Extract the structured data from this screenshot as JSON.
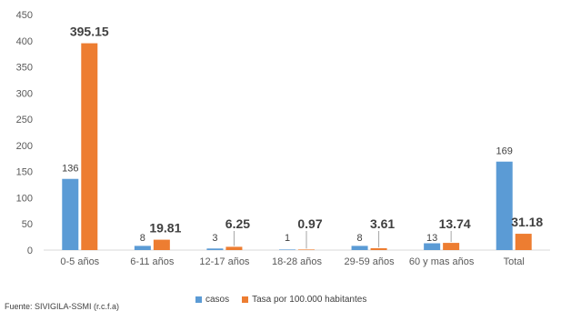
{
  "chart_data": {
    "type": "bar",
    "categories": [
      "0-5 años",
      "6-11 años",
      "12-17 años",
      "18-28 años",
      "29-59 años",
      "60 y mas años",
      "Total"
    ],
    "series": [
      {
        "name": "casos",
        "color": "#5B9BD5",
        "values": [
          136,
          8,
          3,
          1,
          8,
          13,
          169
        ],
        "labels": [
          "136",
          "8",
          "3",
          "1",
          "8",
          "13",
          "169"
        ]
      },
      {
        "name": "Tasa por 100.000 habitantes",
        "color": "#ED7D31",
        "values": [
          395.15,
          19.81,
          6.25,
          0.97,
          3.61,
          13.74,
          31.18
        ],
        "labels": [
          "395.15",
          "19.81",
          "6.25",
          "0.97",
          "3.61",
          "13.74",
          "31.18"
        ]
      }
    ],
    "ylim": [
      0,
      450
    ],
    "yticks": [
      0,
      50,
      100,
      150,
      200,
      250,
      300,
      350,
      400,
      450
    ],
    "legend_position": "bottom",
    "grid": false
  },
  "source": "Fuente: SIVIGILA-SSMI (r.c.f.a)"
}
